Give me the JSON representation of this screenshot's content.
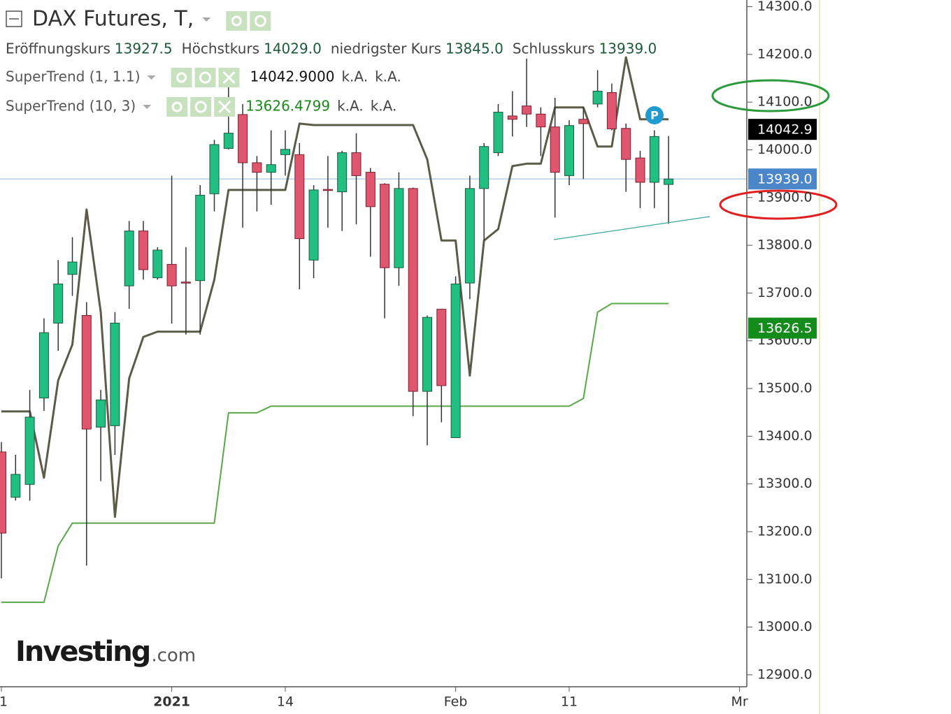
{
  "chart_data": {
    "type": "candlestick",
    "title": "DAX Futures, T,",
    "ohlc_legend": [
      {
        "name": "Eröffnungskurs",
        "value": "13927.5"
      },
      {
        "name": "Höchstkurs",
        "value": "14029.0"
      },
      {
        "name": "niedrigster Kurs",
        "value": "13845.0"
      },
      {
        "name": "Schlusskurs",
        "value": "13939.0"
      }
    ],
    "categories": [
      "1",
      null,
      null,
      null,
      null,
      null,
      null,
      null,
      null,
      null,
      null,
      null,
      "2021",
      null,
      null,
      null,
      null,
      null,
      null,
      null,
      "14",
      null,
      null,
      null,
      null,
      null,
      null,
      null,
      null,
      null,
      null,
      null,
      "Feb",
      null,
      null,
      null,
      null,
      null,
      null,
      null,
      "11",
      null,
      null,
      null,
      null,
      null,
      null,
      null,
      null,
      null,
      null,
      null,
      "Mr"
    ],
    "open": [
      13367,
      13272,
      13299,
      13480,
      13637,
      13739,
      13653,
      13419,
      13422,
      13715,
      13830,
      13732,
      13760,
      13723,
      13726,
      13908,
      14003,
      14074,
      13973,
      13953,
      13990,
      13990,
      13769,
      13917,
      13912,
      13994,
      13953,
      13928,
      13753,
      13919,
      13494,
      13666,
      13397,
      13721,
      13919,
      13994,
      14071,
      14092,
      14075,
      14048,
      13946,
      14064,
      14096,
      14120,
      14045,
      13983,
      13932,
      13927.5,
      null,
      null,
      null,
      null,
      null
    ],
    "high": [
      13388,
      13361,
      13497,
      13647,
      13769,
      13817,
      13681,
      13497,
      13660,
      13851,
      13851,
      13796,
      13946,
      13796,
      13926,
      14021,
      14139,
      14096,
      13987,
      14041,
      14041,
      14014,
      13926,
      13987,
      13998,
      14035,
      13962,
      13930,
      13953,
      13921,
      13653,
      13667,
      13735,
      13946,
      14014,
      14096,
      14123,
      14191,
      14089,
      14109,
      14062,
      14089,
      14167,
      14139,
      14055,
      13998,
      14041,
      14029,
      null,
      null,
      null,
      null,
      null
    ],
    "low": [
      13102,
      13265,
      13265,
      13453,
      13579,
      13694,
      13129,
      13306,
      13361,
      13667,
      13728,
      13728,
      13636,
      13613,
      13613,
      13871,
      14001,
      13837,
      13871,
      13885,
      13946,
      13708,
      13731,
      13837,
      13830,
      13844,
      13776,
      13647,
      13715,
      13442,
      13381,
      13429,
      13397,
      13687,
      13810,
      13987,
      14028,
      14048,
      13987,
      13858,
      13926,
      13939,
      14089,
      14041,
      13912,
      13878,
      13878,
      13845,
      null,
      null,
      null,
      null,
      null
    ],
    "close": [
      13197,
      13320,
      13440,
      13617,
      13719,
      13765,
      13415,
      13476,
      13637,
      13830,
      13749,
      13790,
      13715,
      13721,
      13905,
      14011,
      14035,
      13973,
      13953,
      13969,
      14001,
      13814,
      13916,
      13915,
      13994,
      13946,
      13881,
      13753,
      13919,
      13494,
      13649,
      13506,
      13719,
      13919,
      14007,
      14079,
      14064,
      14075,
      14048,
      13953,
      14051,
      14055,
      14123,
      14044,
      13980,
      13932,
      14028,
      13939,
      null,
      null,
      null,
      null,
      null
    ],
    "up_color": "#22bf82",
    "down_color": "#e0566e",
    "series": [
      {
        "name": "SuperTrend (1, 1.1)",
        "color": "#5b5b47",
        "value_label": "14042.9000",
        "label_color": "#111111",
        "status": [
          "k.A.",
          "k.A."
        ],
        "values": [
          13452,
          13452,
          13452,
          13313,
          13517,
          13592,
          13875,
          13660,
          13231,
          13521,
          13608,
          13619,
          13619,
          13619,
          13619,
          13728,
          13916,
          13916,
          13916,
          13916,
          13916,
          14055,
          14052,
          14052,
          14052,
          14052,
          14052,
          14052,
          14052,
          14052,
          13980,
          13810,
          13810,
          13527,
          13810,
          13834,
          13966,
          13971,
          13971,
          14089,
          14089,
          14089,
          14007,
          14007,
          14194,
          14064,
          14064,
          14064,
          null,
          null,
          null,
          null,
          null
        ]
      },
      {
        "name": "SuperTrend (10, 3)",
        "color": "#58a848",
        "value_label": "13626.4799",
        "label_color": "#1a8a1a",
        "status": [
          "k.A.",
          "k.A."
        ],
        "values": [
          13052,
          13052,
          13052,
          13052,
          13170,
          13218,
          13218,
          13218,
          13218,
          13218,
          13218,
          13218,
          13218,
          13218,
          13218,
          13218,
          13449,
          13449,
          13449,
          13463,
          13463,
          13463,
          13463,
          13463,
          13463,
          13463,
          13463,
          13463,
          13463,
          13463,
          13463,
          13463,
          13463,
          13463,
          13463,
          13463,
          13463,
          13463,
          13463,
          13463,
          13463,
          13479,
          13660,
          13678,
          13678,
          13678,
          13678,
          13678,
          null,
          null,
          null,
          null,
          null
        ]
      }
    ],
    "ylim": [
      12875,
      14314
    ],
    "yticks": [
      {
        "value": 12900,
        "label": "12900.0"
      },
      {
        "value": 13000,
        "label": "13000.0"
      },
      {
        "value": 13100,
        "label": "13100.0"
      },
      {
        "value": 13200,
        "label": "13200.0"
      },
      {
        "value": 13300,
        "label": "13300.0"
      },
      {
        "value": 13400,
        "label": "13400.0"
      },
      {
        "value": 13500,
        "label": "13500.0"
      },
      {
        "value": 13600,
        "label": "13600.0"
      },
      {
        "value": 13700,
        "label": "13700.0"
      },
      {
        "value": 13800,
        "label": "13800.0"
      },
      {
        "value": 13900,
        "label": "13900.0"
      },
      {
        "value": 14000,
        "label": "14000.0"
      },
      {
        "value": 14100,
        "label": "14100.0"
      },
      {
        "value": 14200,
        "label": "14200.0"
      },
      {
        "value": 14300,
        "label": "14300.0"
      }
    ],
    "price_labels": [
      {
        "value": 14042.9,
        "label": "14042.9",
        "color": "#000000",
        "line": false
      },
      {
        "value": 13939.0,
        "label": "13939.0",
        "color": "#4a86c8",
        "line": true
      },
      {
        "value": 13626.5,
        "label": "13626.5",
        "color": "#148c1c",
        "line": false
      }
    ],
    "badge": "P",
    "watermark": "Investing",
    "watermark_suffix": ".com"
  }
}
